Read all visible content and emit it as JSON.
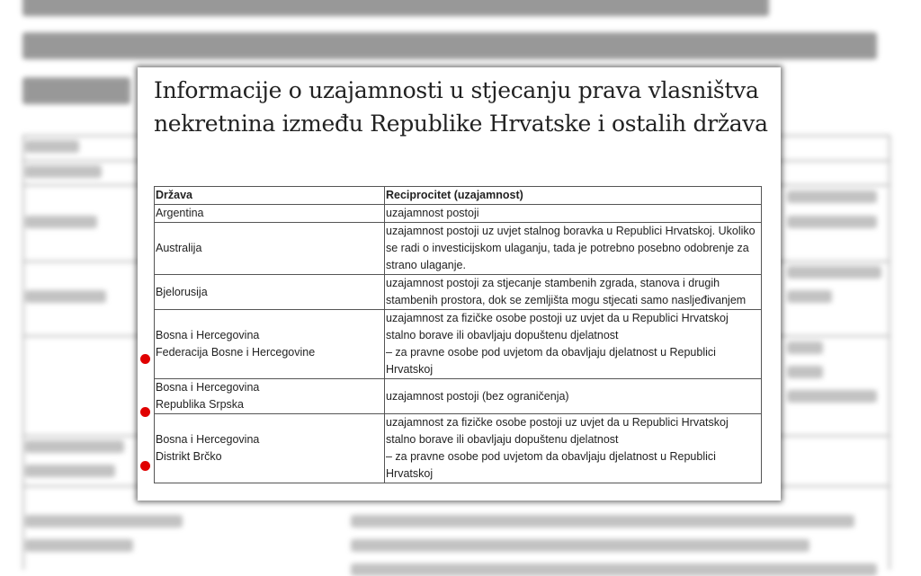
{
  "title": "Informacije o uzajamnosti u stjecanju prava vlasništva nekretnina između Republike Hrvatske i ostalih država",
  "table": {
    "headers": [
      "Država",
      "Reciprocitet (uzajamnost)"
    ],
    "rows": [
      {
        "country": "Argentina",
        "sub": "",
        "reciprocity": "uzajamnost postoji"
      },
      {
        "country": "Australija",
        "sub": "",
        "reciprocity": "uzajamnost postoji uz uvjet stalnog boravka u Republici Hrvatskoj. Ukoliko se radi o investicijskom ulaganju, tada je potrebno posebno odobrenje za strano ulaganje."
      },
      {
        "country": "Bjelorusija",
        "sub": "",
        "reciprocity": "uzajamnost postoji za stjecanje stambenih zgrada, stanova i drugih stambenih prostora, dok se zemljišta mogu stjecati samo nasljeđivanjem"
      },
      {
        "country": "Bosna i Hercegovina",
        "sub": "Federacija Bosne i Hercegovine",
        "reciprocity": "uzajamnost za fizičke osobe postoji uz uvjet da u Republici Hrvatskoj stalno borave ili obavljaju dopuštenu djelatnost",
        "reciprocity2": "– za pravne osobe pod uvjetom da obavljaju djelatnost u Republici Hrvatskoj"
      },
      {
        "country": "Bosna i Hercegovina",
        "sub": "Republika Srpska",
        "reciprocity": "uzajamnost postoji (bez ograničenja)"
      },
      {
        "country": "Bosna i Hercegovina",
        "sub": "Distrikt Brčko",
        "reciprocity": "uzajamnost za fizičke osobe postoji uz uvjet da u Republici Hrvatskoj stalno borave ili obavljaju dopuštenu djelatnost",
        "reciprocity2": "– za pravne osobe pod uvjetom da obavljaju djelatnost u Republici Hrvatskoj"
      }
    ]
  },
  "colors": {
    "marker": "#e00000"
  }
}
